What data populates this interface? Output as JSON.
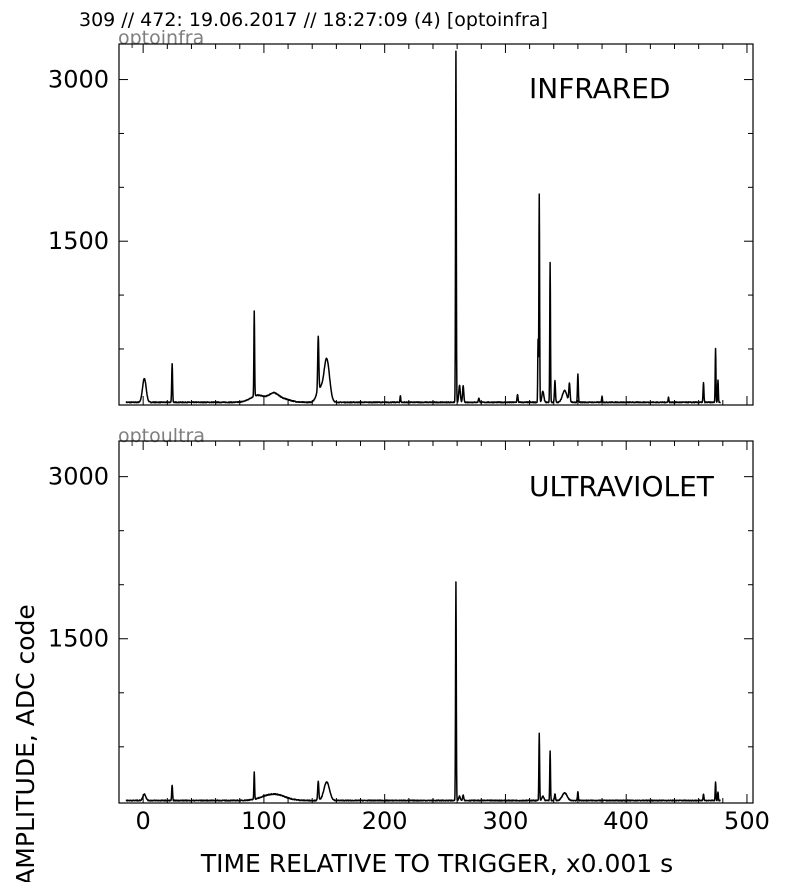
{
  "header": {
    "text": "309 // 472:   19.06.2017 // 18:27:09 (4)  [optoinfra]"
  },
  "ylabel": "AMPLITUDE,  ADC code",
  "xlabel": "TIME RELATIVE TO TRIGGER,   x0.001 s",
  "chart_data": [
    {
      "type": "line",
      "subtitle": "optoinfra",
      "label": "INFRARED",
      "xlim": [
        -20,
        505
      ],
      "ylim": [
        -20,
        3330
      ],
      "xticks": [
        0,
        100,
        200,
        300,
        400,
        500
      ],
      "yticks": [
        1500,
        3000
      ],
      "xtick_labels": [
        "",
        "",
        "",
        "",
        "",
        ""
      ],
      "ytick_labels": [
        "1500",
        "3000"
      ],
      "baseline": 5,
      "bumps": [
        {
          "x": 1,
          "h": 220,
          "w": 1.5
        },
        {
          "x": 24,
          "h": 360,
          "w": 0.35
        },
        {
          "x": 92,
          "h": 790,
          "w": 0.3
        },
        {
          "x": 95,
          "h": 65,
          "w": 6
        },
        {
          "x": 108,
          "h": 70,
          "w": 4
        },
        {
          "x": 116,
          "h": 30,
          "w": 6
        },
        {
          "x": 145,
          "h": 500,
          "w": 0.45
        },
        {
          "x": 146,
          "h": 120,
          "w": 2.5
        },
        {
          "x": 152,
          "h": 400,
          "w": 2.3
        },
        {
          "x": 213,
          "h": 60,
          "w": 0.3
        },
        {
          "x": 259,
          "h": 3260,
          "w": 0.3
        },
        {
          "x": 262,
          "h": 160,
          "w": 0.6
        },
        {
          "x": 265,
          "h": 150,
          "w": 0.5
        },
        {
          "x": 278,
          "h": 40,
          "w": 0.4
        },
        {
          "x": 310,
          "h": 70,
          "w": 0.4
        },
        {
          "x": 327,
          "h": 580,
          "w": 0.25
        },
        {
          "x": 328,
          "h": 1930,
          "w": 0.3
        },
        {
          "x": 331,
          "h": 100,
          "w": 0.8
        },
        {
          "x": 337,
          "h": 1300,
          "w": 0.3
        },
        {
          "x": 341,
          "h": 200,
          "w": 0.4
        },
        {
          "x": 349,
          "h": 110,
          "w": 1.8
        },
        {
          "x": 353,
          "h": 170,
          "w": 0.5
        },
        {
          "x": 360,
          "h": 260,
          "w": 0.35
        },
        {
          "x": 380,
          "h": 60,
          "w": 0.3
        },
        {
          "x": 435,
          "h": 50,
          "w": 0.3
        },
        {
          "x": 464,
          "h": 180,
          "w": 0.35
        },
        {
          "x": 474,
          "h": 500,
          "w": 0.3
        },
        {
          "x": 476,
          "h": 210,
          "w": 0.3
        }
      ]
    },
    {
      "type": "line",
      "subtitle": "optoultra",
      "label": "ULTRAVIOLET",
      "xlim": [
        -20,
        505
      ],
      "ylim": [
        -20,
        3330
      ],
      "xticks": [
        0,
        100,
        200,
        300,
        400,
        500
      ],
      "yticks": [
        1500,
        3000
      ],
      "xtick_labels": [
        "0",
        "100",
        "200",
        "300",
        "400",
        "500"
      ],
      "ytick_labels": [
        "1500",
        "3000"
      ],
      "baseline": 3,
      "bumps": [
        {
          "x": 1,
          "h": 60,
          "w": 1.2
        },
        {
          "x": 24,
          "h": 140,
          "w": 0.35
        },
        {
          "x": 92,
          "h": 250,
          "w": 0.3
        },
        {
          "x": 108,
          "h": 60,
          "w": 9
        },
        {
          "x": 145,
          "h": 180,
          "w": 0.45
        },
        {
          "x": 152,
          "h": 170,
          "w": 2.3
        },
        {
          "x": 259,
          "h": 2020,
          "w": 0.3
        },
        {
          "x": 262,
          "h": 40,
          "w": 0.6
        },
        {
          "x": 265,
          "h": 50,
          "w": 0.5
        },
        {
          "x": 328,
          "h": 620,
          "w": 0.3
        },
        {
          "x": 331,
          "h": 40,
          "w": 0.8
        },
        {
          "x": 337,
          "h": 460,
          "w": 0.3
        },
        {
          "x": 341,
          "h": 60,
          "w": 0.4
        },
        {
          "x": 349,
          "h": 70,
          "w": 2
        },
        {
          "x": 360,
          "h": 80,
          "w": 0.35
        },
        {
          "x": 464,
          "h": 60,
          "w": 0.35
        },
        {
          "x": 474,
          "h": 170,
          "w": 0.3
        },
        {
          "x": 476,
          "h": 80,
          "w": 0.3
        }
      ]
    }
  ]
}
